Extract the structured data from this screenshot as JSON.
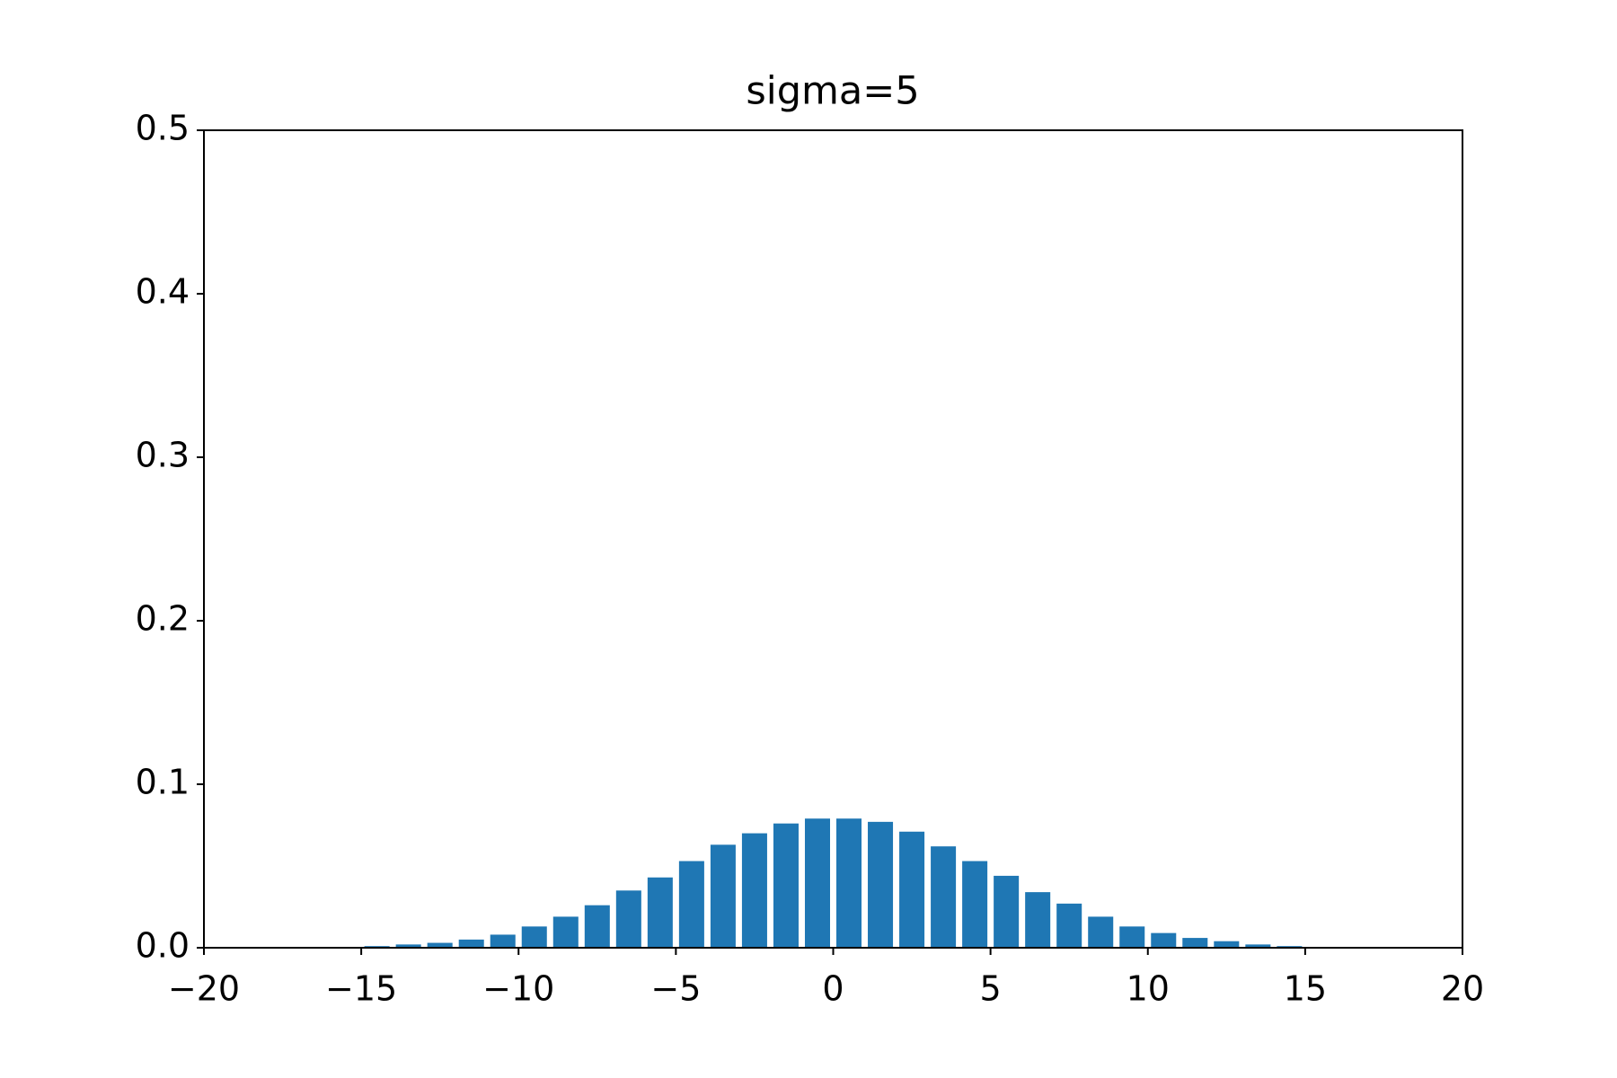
{
  "chart_data": {
    "type": "bar",
    "title": "sigma=5",
    "x": [
      -14.5,
      -13.5,
      -12.5,
      -11.5,
      -10.5,
      -9.5,
      -8.5,
      -7.5,
      -6.5,
      -5.5,
      -4.5,
      -3.5,
      -2.5,
      -1.5,
      -0.5,
      0.5,
      1.5,
      2.5,
      3.5,
      4.5,
      5.5,
      6.5,
      7.5,
      8.5,
      9.5,
      10.5,
      11.5,
      12.5,
      13.5,
      14.5
    ],
    "values": [
      0.001,
      0.002,
      0.003,
      0.005,
      0.008,
      0.013,
      0.019,
      0.026,
      0.035,
      0.043,
      0.053,
      0.063,
      0.07,
      0.076,
      0.079,
      0.079,
      0.077,
      0.071,
      0.062,
      0.053,
      0.044,
      0.034,
      0.027,
      0.019,
      0.013,
      0.009,
      0.006,
      0.004,
      0.002,
      0.001
    ],
    "color": "#1f77b4",
    "xlim": [
      -20,
      20
    ],
    "xticks": [
      {
        "value": -20,
        "label": "−20"
      },
      {
        "value": -15,
        "label": "−15"
      },
      {
        "value": -10,
        "label": "−10"
      },
      {
        "value": -5,
        "label": "−5"
      },
      0,
      5,
      10,
      15,
      20
    ],
    "ylim": [
      0,
      0.5
    ],
    "yticks": [
      {
        "value": 0,
        "label": "0.0"
      },
      0.1,
      0.2,
      0.3,
      0.4,
      0.5
    ],
    "grid": false
  }
}
